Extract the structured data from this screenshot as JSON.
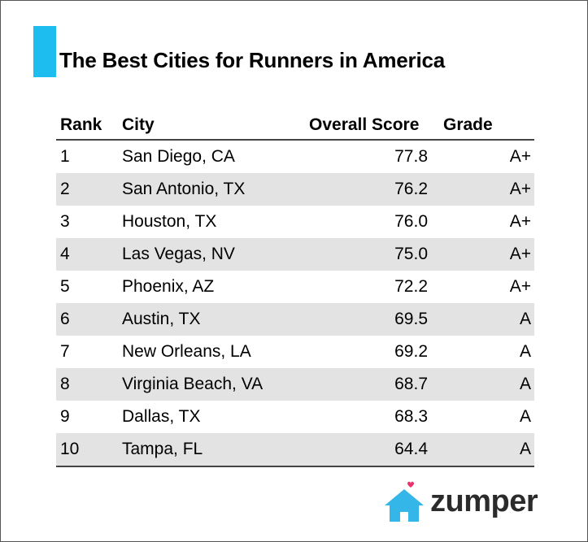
{
  "title": "The Best Cities for Runners in America",
  "colors": {
    "accent": "#1ebdf0",
    "row_shade": "#e3e3e3",
    "logo_house": "#35b6e8",
    "logo_heart": "#e8336d"
  },
  "columns": {
    "rank": "Rank",
    "city": "City",
    "score": "Overall Score",
    "grade": "Grade"
  },
  "chart_data": {
    "type": "table",
    "title": "The Best Cities for Runners in America",
    "columns": [
      "Rank",
      "City",
      "Overall Score",
      "Grade"
    ],
    "rows": [
      {
        "rank": "1",
        "city": "San Diego, CA",
        "score": "77.8",
        "grade": "A+"
      },
      {
        "rank": "2",
        "city": "San Antonio, TX",
        "score": "76.2",
        "grade": "A+"
      },
      {
        "rank": "3",
        "city": "Houston, TX",
        "score": "76.0",
        "grade": "A+"
      },
      {
        "rank": "4",
        "city": "Las Vegas, NV",
        "score": "75.0",
        "grade": "A+"
      },
      {
        "rank": "5",
        "city": "Phoenix, AZ",
        "score": "72.2",
        "grade": "A+"
      },
      {
        "rank": "6",
        "city": "Austin, TX",
        "score": "69.5",
        "grade": "A"
      },
      {
        "rank": "7",
        "city": "New Orleans, LA",
        "score": "69.2",
        "grade": "A"
      },
      {
        "rank": "8",
        "city": "Virginia Beach, VA",
        "score": "68.7",
        "grade": "A"
      },
      {
        "rank": "9",
        "city": "Dallas, TX",
        "score": "68.3",
        "grade": "A"
      },
      {
        "rank": "10",
        "city": "Tampa, FL",
        "score": "64.4",
        "grade": "A"
      }
    ]
  },
  "logo": {
    "text": "zumper",
    "icon": "house-heart-icon"
  }
}
